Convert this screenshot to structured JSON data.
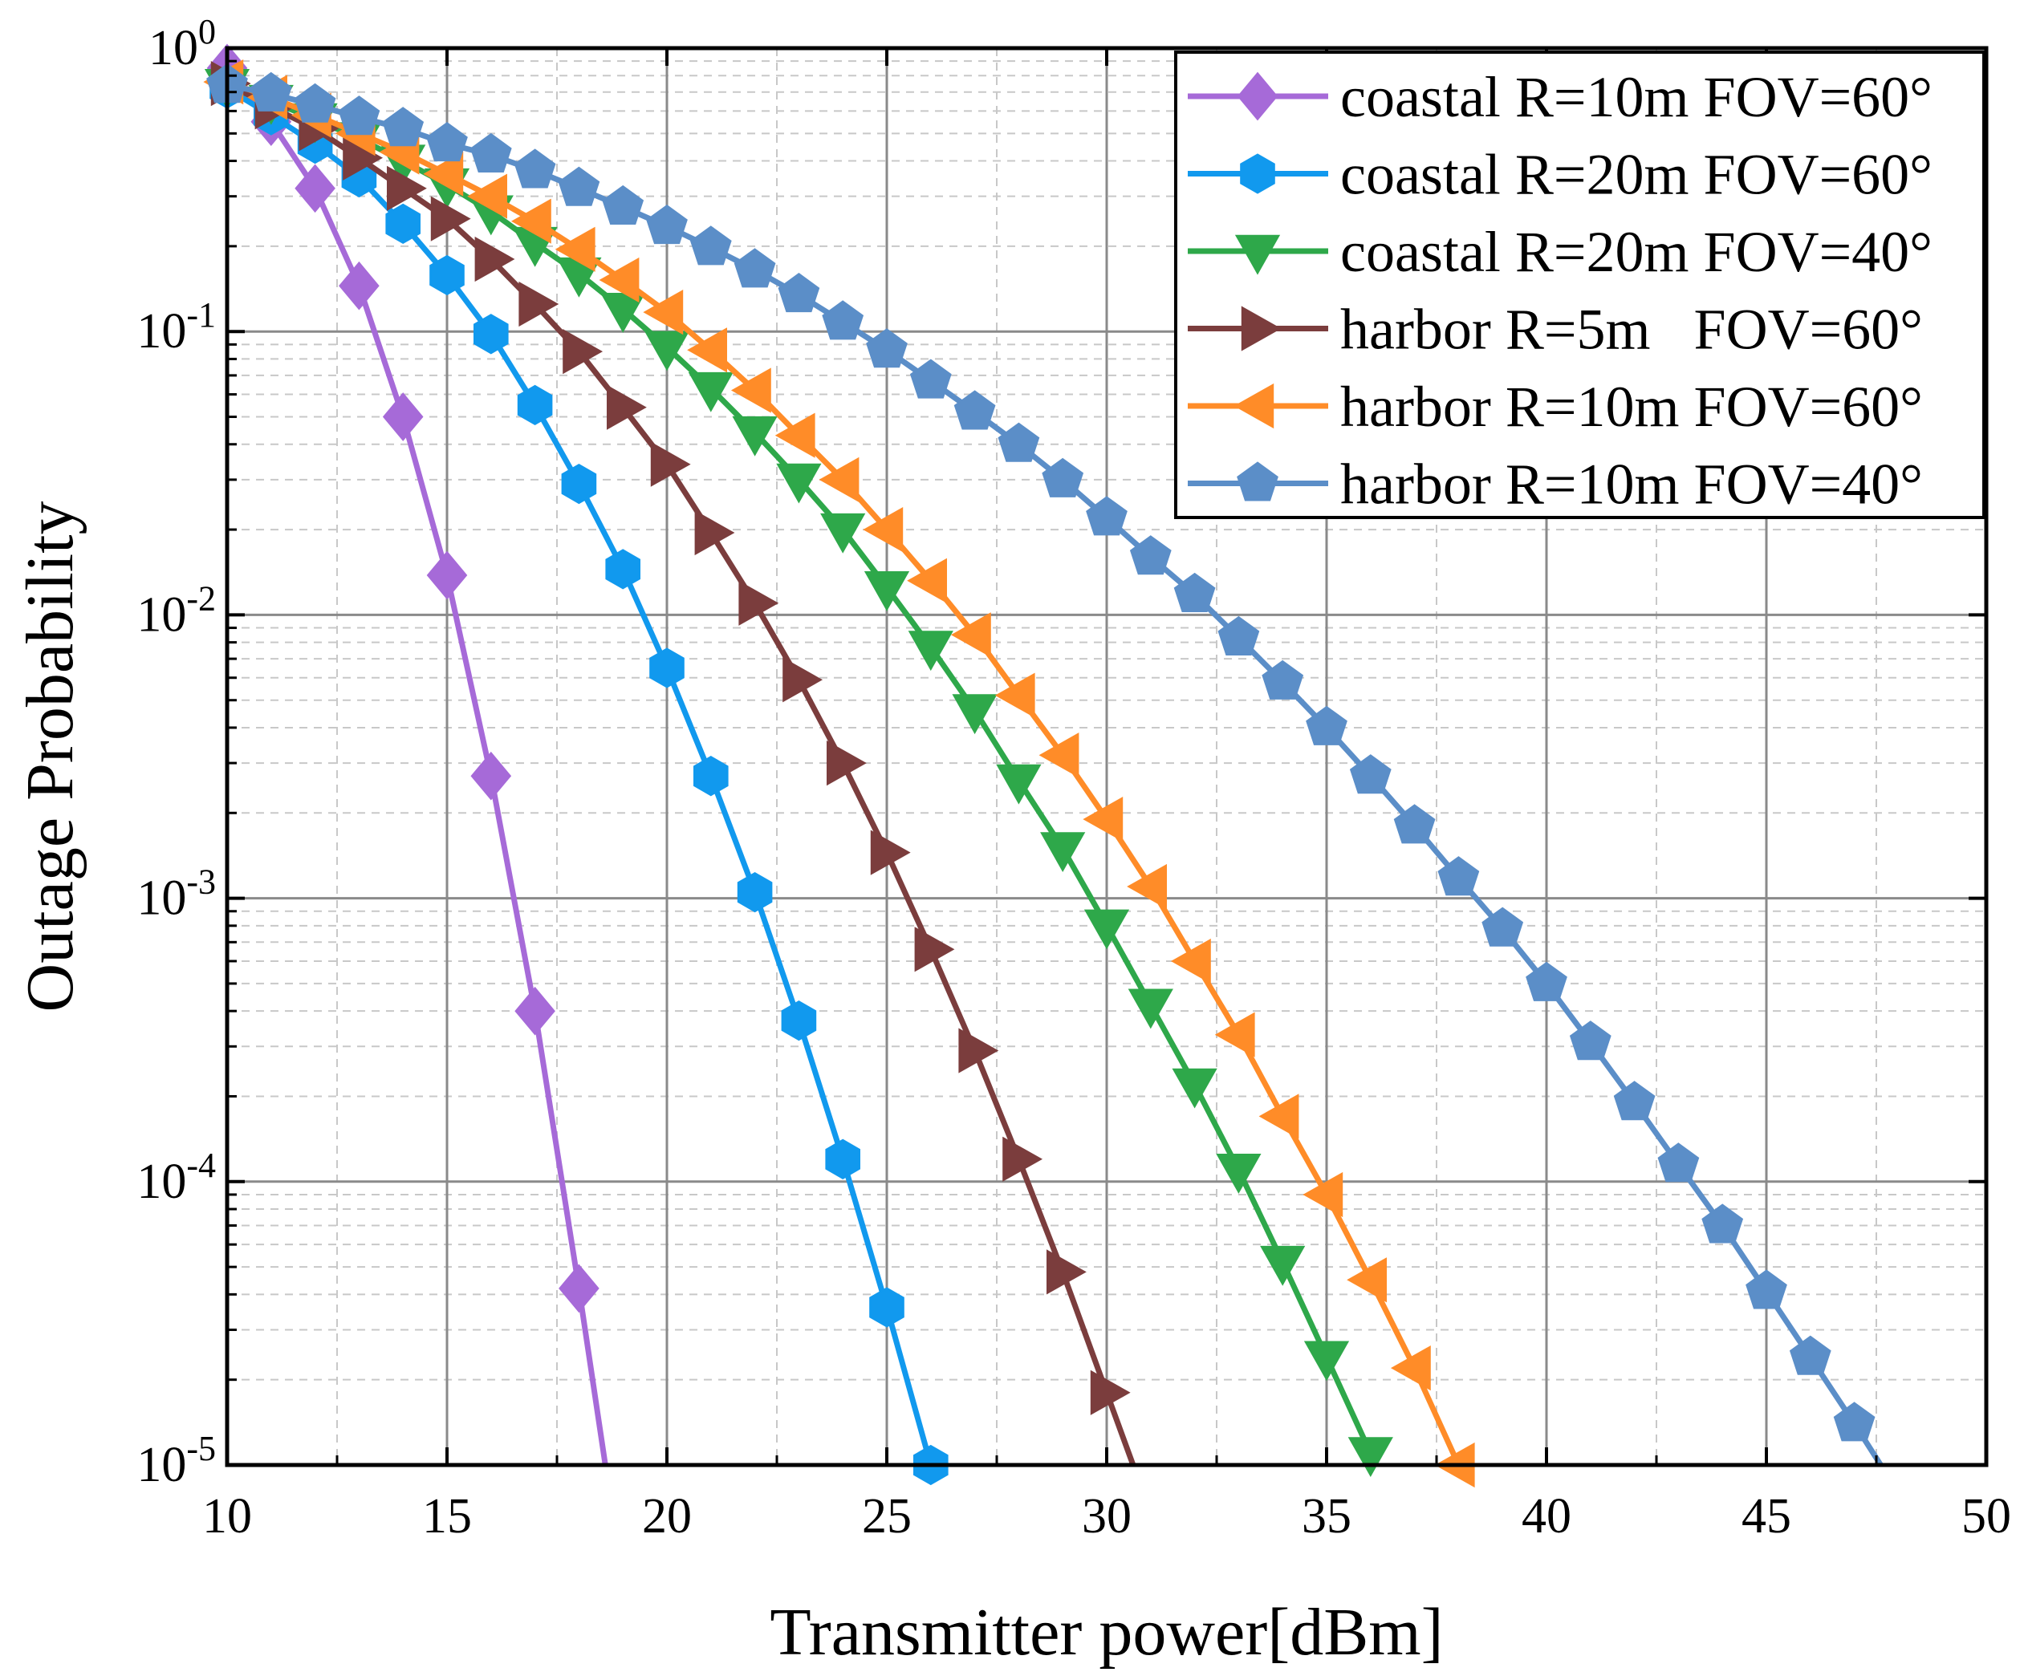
{
  "chart_data": {
    "type": "line",
    "title": "",
    "xlabel": "Transmitter power[dBm]",
    "ylabel": "Outage Probability",
    "xlim": [
      10,
      50
    ],
    "ylim": [
      1e-05,
      1
    ],
    "yscale": "log",
    "grid": true,
    "legend_position": "top-right",
    "x_ticks": [
      10,
      15,
      20,
      25,
      30,
      35,
      40,
      45,
      50
    ],
    "y_ticks": [
      {
        "value": 1,
        "base": "10",
        "exp": "0"
      },
      {
        "value": 0.1,
        "base": "10",
        "exp": "-1"
      },
      {
        "value": 0.01,
        "base": "10",
        "exp": "-2"
      },
      {
        "value": 0.001,
        "base": "10",
        "exp": "-3"
      },
      {
        "value": 0.0001,
        "base": "10",
        "exp": "-4"
      },
      {
        "value": 1e-05,
        "base": "10",
        "exp": "-5"
      }
    ],
    "series": [
      {
        "name": "coastal R=10m FOV=60°",
        "color": "#a66ad8",
        "marker": "diamond",
        "x": [
          10,
          11,
          12,
          13,
          14,
          15,
          16,
          17,
          18,
          18.6
        ],
        "values": [
          0.85,
          0.55,
          0.32,
          0.145,
          0.05,
          0.0138,
          0.0027,
          0.0004,
          4.2e-05,
          1e-05
        ],
        "marker_count": 9
      },
      {
        "name": "coastal R=20m FOV=60°",
        "color": "#1199ee",
        "marker": "hexagon",
        "x": [
          10,
          11,
          12,
          13,
          14,
          15,
          16,
          17,
          18,
          19,
          20,
          21,
          22,
          23,
          24,
          25,
          26
        ],
        "values": [
          0.72,
          0.58,
          0.46,
          0.35,
          0.24,
          0.158,
          0.098,
          0.055,
          0.029,
          0.0145,
          0.0065,
          0.0027,
          0.00105,
          0.00037,
          0.00012,
          3.6e-05,
          1e-05
        ],
        "marker_count": 17
      },
      {
        "name": "coastal R=20m FOV=40°",
        "color": "#2ea84a",
        "marker": "triangle-down",
        "x": [
          10,
          11,
          12,
          13,
          14,
          15,
          16,
          17,
          18,
          19,
          20,
          21,
          22,
          23,
          24,
          25,
          26,
          27,
          28,
          29,
          30,
          31,
          32,
          33,
          34,
          35,
          36
        ],
        "values": [
          0.74,
          0.65,
          0.56,
          0.48,
          0.4,
          0.33,
          0.265,
          0.205,
          0.16,
          0.12,
          0.088,
          0.063,
          0.044,
          0.03,
          0.02,
          0.0125,
          0.0077,
          0.0046,
          0.0026,
          0.0015,
          0.0008,
          0.00042,
          0.00022,
          0.00011,
          5.2e-05,
          2.4e-05,
          1.1e-05
        ],
        "marker_count": 27
      },
      {
        "name": "harbor R=5m   FOV=60°",
        "color": "#7b3d3d",
        "marker": "triangle-right",
        "x": [
          10,
          11,
          12,
          13,
          14,
          15,
          16,
          17,
          18,
          19,
          20,
          21,
          22,
          23,
          24,
          25,
          26,
          27,
          28,
          29,
          30,
          30.6
        ],
        "values": [
          0.75,
          0.62,
          0.52,
          0.41,
          0.32,
          0.25,
          0.18,
          0.125,
          0.085,
          0.054,
          0.034,
          0.0195,
          0.011,
          0.0059,
          0.003,
          0.00145,
          0.00066,
          0.00029,
          0.00012,
          4.8e-05,
          1.8e-05,
          1e-05
        ],
        "marker_count": 21
      },
      {
        "name": "harbor R=10m FOV=60°",
        "color": "#ff8c28",
        "marker": "triangle-left",
        "x": [
          10,
          11,
          12,
          13,
          14,
          15,
          16,
          17,
          18,
          19,
          20,
          21,
          22,
          23,
          24,
          25,
          26,
          27,
          28,
          29,
          30,
          31,
          32,
          33,
          34,
          35,
          36,
          37,
          38
        ],
        "values": [
          0.76,
          0.67,
          0.58,
          0.5,
          0.43,
          0.36,
          0.3,
          0.245,
          0.195,
          0.152,
          0.117,
          0.086,
          0.062,
          0.043,
          0.03,
          0.02,
          0.0132,
          0.0085,
          0.0052,
          0.0032,
          0.0019,
          0.0011,
          0.0006,
          0.00033,
          0.00017,
          9e-05,
          4.5e-05,
          2.2e-05,
          1e-05
        ],
        "marker_count": 29
      },
      {
        "name": "harbor R=10m FOV=40°",
        "color": "#5b8ec8",
        "marker": "pentagon",
        "x": [
          10,
          11,
          12,
          13,
          14,
          15,
          16,
          17,
          18,
          19,
          20,
          21,
          22,
          23,
          24,
          25,
          26,
          27,
          28,
          29,
          30,
          31,
          32,
          33,
          34,
          35,
          36,
          37,
          38,
          39,
          40,
          41,
          42,
          43,
          44,
          45,
          46,
          47,
          47.6
        ],
        "values": [
          0.74,
          0.69,
          0.63,
          0.57,
          0.52,
          0.46,
          0.42,
          0.37,
          0.32,
          0.275,
          0.235,
          0.198,
          0.165,
          0.135,
          0.108,
          0.086,
          0.067,
          0.052,
          0.04,
          0.03,
          0.022,
          0.016,
          0.0118,
          0.0083,
          0.0058,
          0.004,
          0.0027,
          0.0018,
          0.00118,
          0.00078,
          0.0005,
          0.00031,
          0.00019,
          0.000115,
          7e-05,
          4.1e-05,
          2.4e-05,
          1.4e-05,
          1e-05
        ],
        "marker_count": 38
      }
    ]
  }
}
